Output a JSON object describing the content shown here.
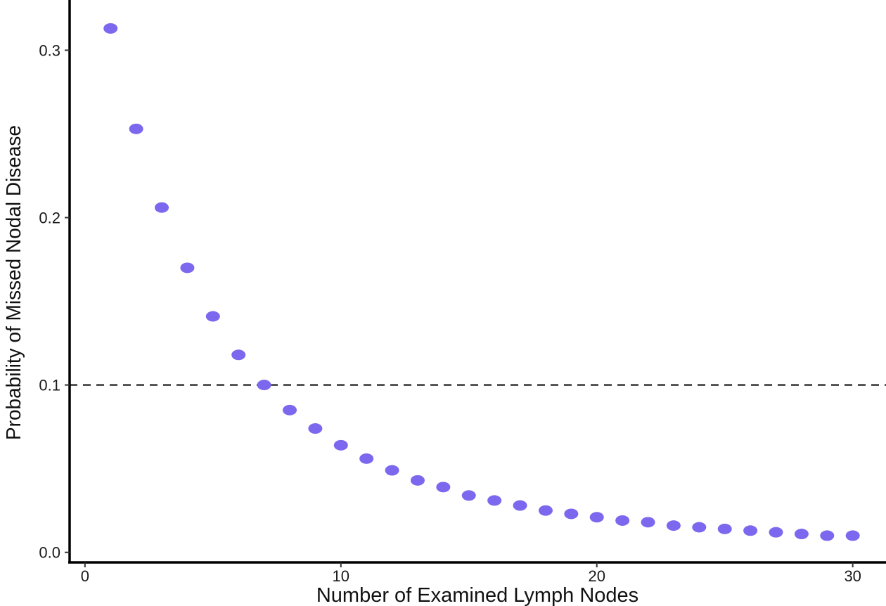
{
  "chart_data": {
    "type": "scatter",
    "title": "",
    "xlabel": "Number of Examined Lymph Nodes",
    "ylabel": "Probability of Missed Nodal Disease",
    "xlim": [
      -0.6,
      31.3
    ],
    "ylim": [
      -0.006,
      0.33
    ],
    "x_ticks": [
      0,
      10,
      20,
      30
    ],
    "x_tick_labels": [
      "0",
      "10",
      "20",
      "30"
    ],
    "y_ticks": [
      0.0,
      0.1,
      0.2,
      0.3
    ],
    "y_tick_labels": [
      "0.0",
      "0.1",
      "0.2",
      "0.3"
    ],
    "grid": false,
    "legend": "none",
    "point_color": "#7B68EE",
    "reference_line": {
      "y": 0.1,
      "style": "dashed",
      "color": "#000000"
    },
    "series": [
      {
        "x": [
          1,
          2,
          3,
          4,
          5,
          6,
          7,
          8,
          9,
          10,
          11,
          12,
          13,
          14,
          15,
          16,
          17,
          18,
          19,
          20,
          21,
          22,
          23,
          24,
          25,
          26,
          27,
          28,
          29,
          30
        ],
        "values": [
          0.313,
          0.253,
          0.206,
          0.17,
          0.141,
          0.118,
          0.1,
          0.085,
          0.074,
          0.064,
          0.056,
          0.049,
          0.043,
          0.039,
          0.034,
          0.031,
          0.028,
          0.025,
          0.023,
          0.021,
          0.019,
          0.018,
          0.016,
          0.015,
          0.014,
          0.013,
          0.012,
          0.011,
          0.01,
          0.01
        ]
      }
    ]
  }
}
